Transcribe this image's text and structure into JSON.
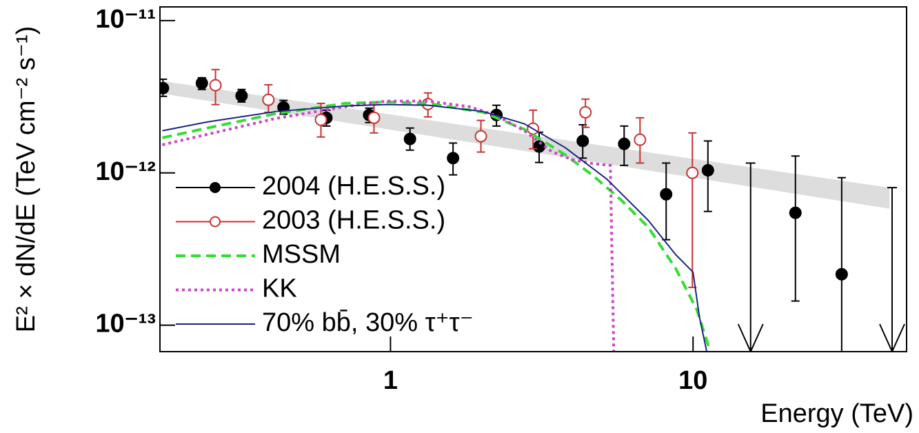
{
  "chart_data": {
    "type": "scatter",
    "log_x": true,
    "log_y": true,
    "xlabel": "Energy (TeV)",
    "ylabel": "E² × dN/dE (TeV cm⁻² s⁻¹)",
    "xlim": [
      0.173,
      50.8
    ],
    "ylim": [
      6.7e-14,
      1.23e-11
    ],
    "xticks": [
      1,
      10
    ],
    "yticks": [
      {
        "value": 1e-13,
        "label": "10⁻¹³"
      },
      {
        "value": 1e-12,
        "label": "10⁻¹²"
      },
      {
        "value": 1e-11,
        "label": "10⁻¹¹"
      }
    ],
    "legend": "lower left",
    "band": {
      "color": "#dddddd",
      "x": [
        0.177,
        44.6
      ],
      "lower": [
        3.31e-12,
        5.82e-13
      ],
      "upper": [
        4e-12,
        8e-13
      ]
    },
    "series": [
      {
        "name": "2004 (H.E.S.S.)",
        "kind": "points",
        "marker": "filled",
        "color": "#000000",
        "x": [
          0.177,
          0.238,
          0.322,
          0.443,
          0.614,
          0.85,
          1.16,
          1.61,
          2.24,
          3.1,
          4.32,
          5.92,
          8.15,
          11.2,
          21.8,
          31.0
        ],
        "values": [
          3.6e-12,
          3.88e-12,
          3.21e-12,
          2.69e-12,
          2.3e-12,
          2.4e-12,
          1.67e-12,
          1.25e-12,
          2.4e-12,
          1.49e-12,
          1.62e-12,
          1.55e-12,
          7.24e-13,
          1.04e-12,
          5.47e-13,
          2.16e-13
        ],
        "lower": [
          3.18e-12,
          3.53e-12,
          2.92e-12,
          2.43e-12,
          2.03e-12,
          2.14e-12,
          1.41e-12,
          9.7e-13,
          2.03e-12,
          1.17e-12,
          1.25e-12,
          1.12e-12,
          3.64e-13,
          5.58e-13,
          1.44e-13,
          6.7e-14
        ],
        "upper": [
          4.12e-12,
          4.21e-12,
          3.53e-12,
          2.99e-12,
          2.58e-12,
          2.66e-12,
          1.97e-12,
          1.57e-12,
          2.78e-12,
          1.85e-12,
          2.07e-12,
          2.03e-12,
          1.16e-12,
          1.62e-12,
          1.29e-12,
          9.3e-13
        ],
        "upper_limits": {
          "x": [
            15.5,
            45.5
          ],
          "values": [
            1.16e-12,
            8e-13
          ]
        }
      },
      {
        "name": "2003 (H.E.S.S.)",
        "kind": "points",
        "marker": "open",
        "color": "#c83232",
        "x": [
          0.264,
          0.395,
          0.589,
          0.882,
          1.33,
          1.99,
          2.96,
          4.41,
          6.68,
          9.95
        ],
        "values": [
          3.76e-12,
          3.02e-12,
          2.23e-12,
          2.3e-12,
          2.83e-12,
          1.74e-12,
          1.95e-12,
          2.5e-12,
          1.65e-12,
          1e-12
        ],
        "lower": [
          2.81e-12,
          2.5e-12,
          1.72e-12,
          1.83e-12,
          2.33e-12,
          1.37e-12,
          1.44e-12,
          1.99e-12,
          1.16e-12,
          1.77e-13
        ],
        "upper": [
          4.77e-12,
          3.79e-12,
          2.86e-12,
          2.92e-12,
          3.35e-12,
          2.21e-12,
          2.58e-12,
          3.05e-12,
          2.3e-12,
          1.83e-12
        ]
      },
      {
        "name": "MSSM",
        "kind": "line",
        "dash": "dashed",
        "color": "#33dd33",
        "x": [
          0.1762,
          0.248,
          0.419,
          0.707,
          0.969,
          1.33,
          2.02,
          2.77,
          3.79,
          4.67,
          5.77,
          7.11,
          8.77,
          10.3,
          11.4
        ],
        "values": [
          1.7e-12,
          1.97e-12,
          2.45e-12,
          2.86e-12,
          2.92e-12,
          2.86e-12,
          2.5e-12,
          1.93e-12,
          1.31e-12,
          9.6e-13,
          6.67e-13,
          4.4e-13,
          2.35e-13,
          1.26e-13,
          6.7e-14
        ]
      },
      {
        "name": "KK",
        "kind": "line",
        "dash": "dotted",
        "color": "#cc44cc",
        "x": [
          0.1762,
          0.248,
          0.419,
          0.707,
          0.969,
          1.33,
          1.82,
          2.24,
          2.77,
          3.41,
          3.99,
          4.67,
          5.33,
          5.47
        ],
        "values": [
          1.53e-12,
          1.79e-12,
          2.28e-12,
          2.72e-12,
          2.96e-12,
          2.96e-12,
          2.72e-12,
          2.38e-12,
          1.89e-12,
          1.38e-12,
          1.22e-12,
          1.15e-12,
          1.12e-12,
          6.7e-14
        ]
      },
      {
        "name": "70% bb̄, 30% τ⁺τ⁻",
        "kind": "line",
        "dash": "solid",
        "color": "#1a237e",
        "x": [
          0.1762,
          0.248,
          0.419,
          0.707,
          0.969,
          1.33,
          2.02,
          2.77,
          3.79,
          5.19,
          7.11,
          8.77,
          10.0,
          10.5,
          11.1
        ],
        "values": [
          1.89e-12,
          2.16e-12,
          2.53e-12,
          2.75e-12,
          2.81e-12,
          2.78e-12,
          2.53e-12,
          2.1e-12,
          1.46e-12,
          9.1e-13,
          4.88e-13,
          2.9e-13,
          2.23e-13,
          1.13e-13,
          6.7e-14
        ]
      }
    ]
  }
}
